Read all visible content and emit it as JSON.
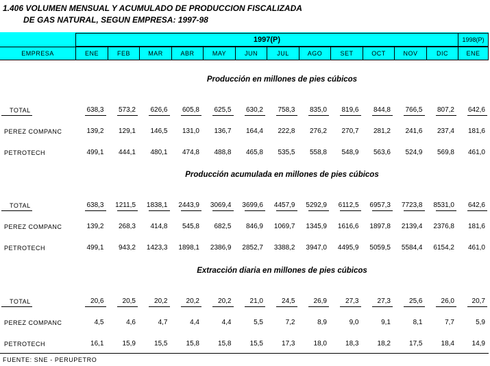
{
  "title": {
    "line1": "1.406  VOLUMEN MENSUAL Y ACUMULADO DE PRODUCCION FISCALIZADA",
    "line2": "DE GAS NATURAL, SEGUN EMPRESA: 1997-98"
  },
  "header": {
    "year1": "1997(P)",
    "year2": "1998(P)",
    "company_col": "EMPRESA",
    "months": [
      "ENE",
      "FEB",
      "MAR",
      "ABR",
      "MAY",
      "JUN",
      "JUL",
      "AGO",
      "SET",
      "OCT",
      "NOV",
      "DIC",
      "ENE"
    ]
  },
  "sections": [
    {
      "title": "Producción en millones de pies cúbicos",
      "rows": [
        {
          "label": "TOTAL",
          "values": [
            "638,3",
            "573,2",
            "626,6",
            "605,8",
            "625,5",
            "630,2",
            "758,3",
            "835,0",
            "819,6",
            "844,8",
            "766,5",
            "807,2",
            "642,6"
          ]
        },
        {
          "label": "PEREZ COMPANC",
          "values": [
            "139,2",
            "129,1",
            "146,5",
            "131,0",
            "136,7",
            "164,4",
            "222,8",
            "276,2",
            "270,7",
            "281,2",
            "241,6",
            "237,4",
            "181,6"
          ]
        },
        {
          "label": "PETROTECH",
          "values": [
            "499,1",
            "444,1",
            "480,1",
            "474,8",
            "488,8",
            "465,8",
            "535,5",
            "558,8",
            "548,9",
            "563,6",
            "524,9",
            "569,8",
            "461,0"
          ]
        }
      ]
    },
    {
      "title": "Producción acumulada en millones de pies cúbicos",
      "rows": [
        {
          "label": "TOTAL",
          "values": [
            "638,3",
            "1211,5",
            "1838,1",
            "2443,9",
            "3069,4",
            "3699,6",
            "4457,9",
            "5292,9",
            "6112,5",
            "6957,3",
            "7723,8",
            "8531,0",
            "642,6"
          ]
        },
        {
          "label": "PEREZ COMPANC",
          "values": [
            "139,2",
            "268,3",
            "414,8",
            "545,8",
            "682,5",
            "846,9",
            "1069,7",
            "1345,9",
            "1616,6",
            "1897,8",
            "2139,4",
            "2376,8",
            "181,6"
          ]
        },
        {
          "label": "PETROTECH",
          "values": [
            "499,1",
            "943,2",
            "1423,3",
            "1898,1",
            "2386,9",
            "2852,7",
            "3388,2",
            "3947,0",
            "4495,9",
            "5059,5",
            "5584,4",
            "6154,2",
            "461,0"
          ]
        }
      ]
    },
    {
      "title": "Extracción diaria en millones de pies cúbicos",
      "rows": [
        {
          "label": "TOTAL",
          "values": [
            "20,6",
            "20,5",
            "20,2",
            "20,2",
            "20,2",
            "21,0",
            "24,5",
            "26,9",
            "27,3",
            "27,3",
            "25,6",
            "26,0",
            "20,7"
          ]
        },
        {
          "label": "PEREZ COMPANC",
          "values": [
            "4,5",
            "4,6",
            "4,7",
            "4,4",
            "4,4",
            "5,5",
            "7,2",
            "8,9",
            "9,0",
            "9,1",
            "8,1",
            "7,7",
            "5,9"
          ]
        },
        {
          "label": "PETROTECH",
          "values": [
            "16,1",
            "15,9",
            "15,5",
            "15,8",
            "15,8",
            "15,5",
            "17,3",
            "18,0",
            "18,3",
            "18,2",
            "17,5",
            "18,4",
            "14,9"
          ]
        }
      ]
    }
  ],
  "source": "FUENTE: SNE - PERUPETRO"
}
